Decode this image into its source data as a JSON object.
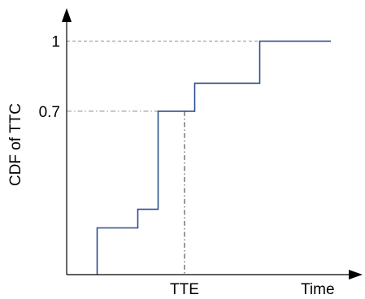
{
  "chart_data": {
    "type": "line",
    "step": true,
    "xlabel": "Time",
    "ylabel": "CDF of TTC",
    "x_tick_labels": [
      {
        "label": "TTE",
        "value": 5.8
      }
    ],
    "y_tick_labels": [
      {
        "label": "0.7",
        "value": 0.7
      },
      {
        "label": "1",
        "value": 1
      }
    ],
    "xlim": [
      0,
      14
    ],
    "ylim": [
      0,
      1.1
    ],
    "series": [
      {
        "points": [
          [
            1.5,
            0
          ],
          [
            1.5,
            0.2
          ],
          [
            3.5,
            0.2
          ],
          [
            3.5,
            0.28
          ],
          [
            4.5,
            0.28
          ],
          [
            4.5,
            0.7
          ],
          [
            6.3,
            0.7
          ],
          [
            6.3,
            0.82
          ],
          [
            9.5,
            0.82
          ],
          [
            9.5,
            1
          ],
          [
            13,
            1
          ]
        ]
      }
    ],
    "reference_lines": [
      {
        "type": "horizontal",
        "y": 1,
        "style": "dashed"
      },
      {
        "type": "horizontal",
        "y": 0.7,
        "style": "dash-dot"
      },
      {
        "type": "vertical",
        "x": 5.8,
        "style": "dash-dot"
      }
    ],
    "colors": {
      "series": "#2e4d8c",
      "axis": "#000000",
      "reference": "#8a8a8a"
    },
    "grid": false,
    "legend": "none"
  }
}
